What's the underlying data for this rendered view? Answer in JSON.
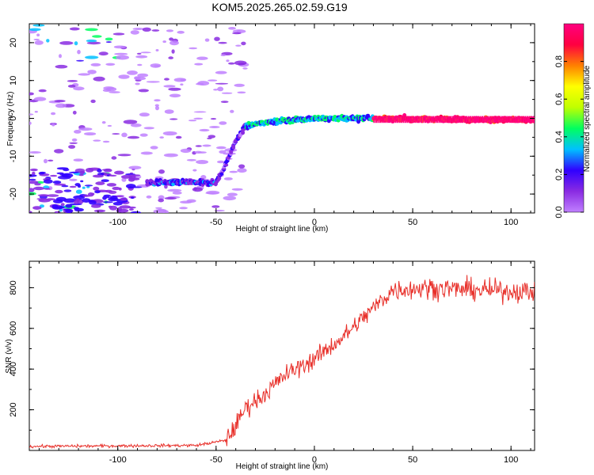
{
  "title": "KOM5.2025.265.02.59.G19",
  "colors": {
    "snr_line": "#e8302a",
    "colorbar": [
      "#c080ff",
      "#8a2be2",
      "#3000ff",
      "#00c0ff",
      "#00ff60",
      "#c0ff00",
      "#ffff00",
      "#ff8000",
      "#ff0040",
      "#ff0080"
    ]
  },
  "chart_data": [
    {
      "type": "heatmap",
      "name": "spectrogram",
      "xlabel": "Height of straight line (km)",
      "ylabel": "Frequency (Hz)",
      "xlim": [
        -145,
        112
      ],
      "ylim": [
        -25,
        25
      ],
      "xticks": [
        -100,
        -50,
        0,
        50,
        100
      ],
      "yticks": [
        20,
        10,
        0,
        -10,
        -20
      ],
      "colorbar": {
        "label": "Normalized spectral amplitude",
        "range": [
          0,
          1
        ],
        "ticks": [
          "0.0",
          "0.2",
          "0.4",
          "0.6",
          "0.8"
        ]
      },
      "ridge": {
        "description_points": [
          {
            "x": -85,
            "y": -17
          },
          {
            "x": -50,
            "y": -17
          },
          {
            "x": -45,
            "y": -12
          },
          {
            "x": -40,
            "y": -6
          },
          {
            "x": -35,
            "y": -2
          },
          {
            "x": -25,
            "y": -1
          },
          {
            "x": 0,
            "y": 0
          },
          {
            "x": 30,
            "y": 0
          },
          {
            "x": 112,
            "y": -0.5
          }
        ]
      }
    },
    {
      "type": "line",
      "name": "snr",
      "xlabel": "Height of straight line (km)",
      "ylabel": "SNR (v/v)",
      "xlim": [
        -145,
        112
      ],
      "ylim": [
        0,
        930
      ],
      "xticks": [
        -100,
        -50,
        0,
        50,
        100
      ],
      "yticks": [
        800,
        600,
        400,
        200
      ],
      "trend": [
        {
          "x": -145,
          "y": 20
        },
        {
          "x": -60,
          "y": 25
        },
        {
          "x": -45,
          "y": 50
        },
        {
          "x": -40,
          "y": 120
        },
        {
          "x": -35,
          "y": 210
        },
        {
          "x": -25,
          "y": 280
        },
        {
          "x": -15,
          "y": 370
        },
        {
          "x": 0,
          "y": 450
        },
        {
          "x": 15,
          "y": 560
        },
        {
          "x": 30,
          "y": 700
        },
        {
          "x": 40,
          "y": 790
        },
        {
          "x": 60,
          "y": 800
        },
        {
          "x": 80,
          "y": 790
        },
        {
          "x": 112,
          "y": 780
        }
      ]
    }
  ]
}
